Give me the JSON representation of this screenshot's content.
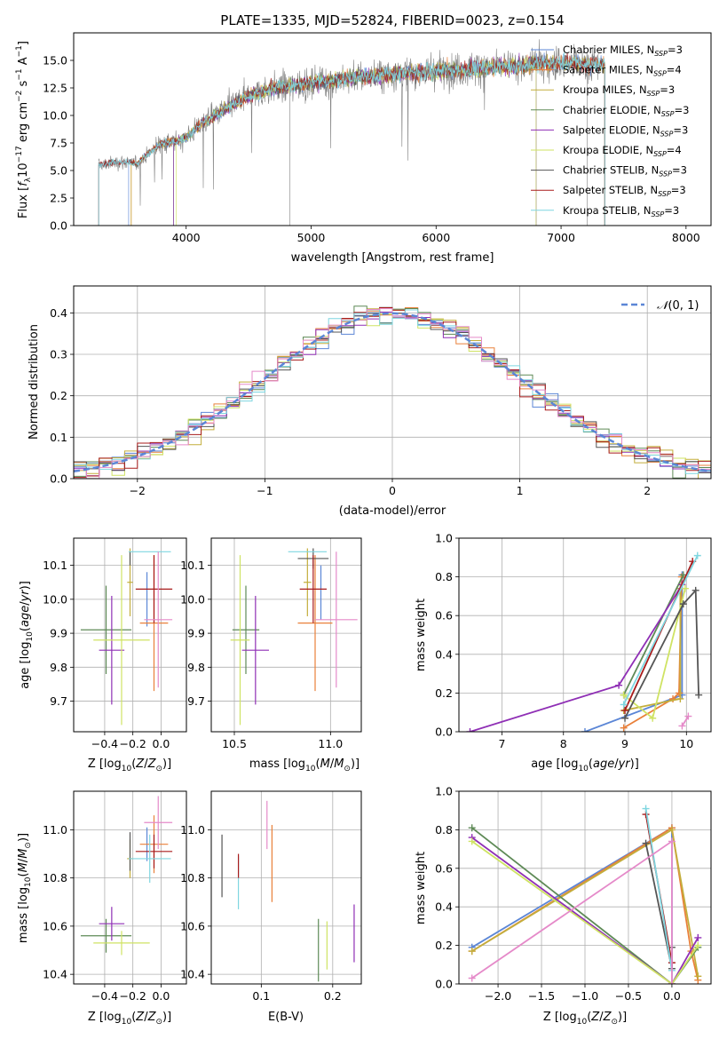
{
  "colors": {
    "Chabrier MILES": "#5b86d6",
    "Salpeter MILES": "#e9803a",
    "Kroupa MILES": "#c3ae3c",
    "Chabrier ELODIE": "#5e8a56",
    "Salpeter ELODIE": "#8f2fb5",
    "Kroupa ELODIE": "#cfe363",
    "Chabrier STELIB": "#555555",
    "Salpeter STELIB": "#a81b1b",
    "Kroupa STELIB": "#7fd6e0",
    "pink": "#e58ac9",
    "observed": "#808080",
    "normal": "#5b86d6"
  },
  "chart_data": [
    {
      "id": "spectrum",
      "type": "line",
      "title": "PLATE=1335, MJD=52824, FIBERID=0023, z=0.154",
      "xlabel": "wavelength [Angstrom, rest frame]",
      "ylabel": "Flux [f_λ 10^-17 erg cm^-2 s^-1 A^-1]",
      "xlim": [
        3100,
        8200
      ],
      "ylim": [
        0,
        17.5
      ],
      "xticks": [
        4000,
        5000,
        6000,
        7000,
        8000
      ],
      "yticks": [
        0.0,
        2.5,
        5.0,
        7.5,
        10.0,
        12.5,
        15.0
      ],
      "ytick_labels": [
        "0.0",
        "2.5",
        "5.0",
        "7.5",
        "10.0",
        "12.5",
        "15.0"
      ],
      "grid": false,
      "legend": "right",
      "continuum": {
        "x": [
          3300,
          3500,
          3600,
          3800,
          3900,
          4000,
          4100,
          4300,
          4500,
          4700,
          5000,
          5300,
          5600,
          6000,
          6300,
          6600,
          7000,
          7300
        ],
        "y": [
          5.5,
          5.8,
          5.6,
          7.5,
          7.6,
          8.0,
          9.0,
          10.5,
          11.8,
          12.5,
          12.9,
          13.4,
          13.7,
          14.0,
          14.3,
          14.5,
          14.8,
          14.6
        ]
      },
      "series": [
        {
          "name": "Chabrier MILES, N_SSP=3",
          "color_key": "Chabrier MILES"
        },
        {
          "name": "Salpeter MILES, N_SSP=4",
          "color_key": "Salpeter MILES"
        },
        {
          "name": "Kroupa MILES, N_SSP=3",
          "color_key": "Kroupa MILES"
        },
        {
          "name": "Chabrier ELODIE, N_SSP=3",
          "color_key": "Chabrier ELODIE"
        },
        {
          "name": "Salpeter ELODIE, N_SSP=3",
          "color_key": "Salpeter ELODIE"
        },
        {
          "name": "Kroupa ELODIE, N_SSP=4",
          "color_key": "Kroupa ELODIE"
        },
        {
          "name": "Chabrier STELIB, N_SSP=3",
          "color_key": "Chabrier STELIB"
        },
        {
          "name": "Salpeter STELIB, N_SSP=3",
          "color_key": "Salpeter STELIB"
        },
        {
          "name": "Kroupa STELIB, N_SSP=3",
          "color_key": "Kroupa STELIB"
        }
      ]
    },
    {
      "id": "residuals",
      "type": "histogram",
      "xlabel": "(data-model)/error",
      "ylabel": "Normed distribution",
      "xlim": [
        -2.5,
        2.5
      ],
      "ylim": [
        0,
        0.465
      ],
      "xticks": [
        -2,
        -1,
        0,
        1,
        2
      ],
      "yticks": [
        0.0,
        0.1,
        0.2,
        0.3,
        0.4
      ],
      "grid": true,
      "legend": "top-right",
      "normal_label": "N(0,1)"
    },
    {
      "id": "age-Z",
      "type": "errorbar",
      "xlabel": "Z [log10(Z/Z_sun)]",
      "ylabel": "age [log10(age/yr)]",
      "xlim": [
        -0.62,
        0.18
      ],
      "ylim": [
        9.61,
        10.18
      ],
      "xticks": [
        -0.4,
        -0.2,
        0.0
      ],
      "yticks": [
        9.7,
        9.8,
        9.9,
        10.0,
        10.1
      ],
      "points": [
        {
          "c": "Chabrier MILES",
          "x": -0.1,
          "y": 10.0,
          "xe": 0.0,
          "ye": 0.08
        },
        {
          "c": "Salpeter MILES",
          "x": -0.05,
          "y": 9.93,
          "xe": 0.1,
          "ye": 0.2
        },
        {
          "c": "Kroupa MILES",
          "x": -0.22,
          "y": 10.05,
          "xe": 0.02,
          "ye": 0.1
        },
        {
          "c": "Chabrier ELODIE",
          "x": -0.39,
          "y": 9.91,
          "xe": 0.18,
          "ye": 0.13
        },
        {
          "c": "Salpeter ELODIE",
          "x": -0.35,
          "y": 9.85,
          "xe": 0.09,
          "ye": 0.16
        },
        {
          "c": "Kroupa ELODIE",
          "x": -0.28,
          "y": 9.88,
          "xe": 0.2,
          "ye": 0.25
        },
        {
          "c": "Chabrier STELIB",
          "x": -0.22,
          "y": 10.12,
          "xe": 0.0,
          "ye": 0.02
        },
        {
          "c": "Salpeter STELIB",
          "x": -0.05,
          "y": 10.03,
          "xe": 0.13,
          "ye": 0.1
        },
        {
          "c": "Kroupa STELIB",
          "x": -0.08,
          "y": 10.14,
          "xe": 0.15,
          "ye": 0.0
        },
        {
          "c": "pink",
          "x": -0.02,
          "y": 9.94,
          "xe": 0.1,
          "ye": 0.2
        }
      ]
    },
    {
      "id": "age-mass",
      "type": "errorbar",
      "xlabel": "mass [log10(M/M_sun)]",
      "xlim": [
        10.38,
        11.16
      ],
      "ylim": [
        9.61,
        10.18
      ],
      "xticks": [
        10.5,
        11.0
      ],
      "yticks": [
        9.7,
        9.8,
        9.9,
        10.0,
        10.1
      ],
      "points": [
        {
          "c": "Chabrier MILES",
          "x": 10.95,
          "y": 10.02,
          "xe": 0.0,
          "ye": 0.08
        },
        {
          "c": "Salpeter MILES",
          "x": 10.92,
          "y": 9.93,
          "xe": 0.09,
          "ye": 0.2
        },
        {
          "c": "Kroupa MILES",
          "x": 10.88,
          "y": 10.05,
          "xe": 0.02,
          "ye": 0.1
        },
        {
          "c": "Chabrier ELODIE",
          "x": 10.56,
          "y": 9.91,
          "xe": 0.07,
          "ye": 0.13
        },
        {
          "c": "Salpeter ELODIE",
          "x": 10.61,
          "y": 9.85,
          "xe": 0.07,
          "ye": 0.16
        },
        {
          "c": "Kroupa ELODIE",
          "x": 10.53,
          "y": 9.88,
          "xe": 0.05,
          "ye": 0.25
        },
        {
          "c": "Chabrier STELIB",
          "x": 10.91,
          "y": 10.12,
          "xe": 0.08,
          "ye": 0.03
        },
        {
          "c": "Salpeter STELIB",
          "x": 10.91,
          "y": 10.03,
          "xe": 0.07,
          "ye": 0.1
        },
        {
          "c": "Kroupa STELIB",
          "x": 10.88,
          "y": 10.14,
          "xe": 0.1,
          "ye": 0.0
        },
        {
          "c": "pink",
          "x": 11.03,
          "y": 9.94,
          "xe": 0.11,
          "ye": 0.2
        }
      ]
    },
    {
      "id": "weight-age",
      "type": "line",
      "xlabel": "age [log10(age/yr)]",
      "ylabel": "mass weight",
      "xlim": [
        6.3,
        10.4
      ],
      "ylim": [
        0,
        1
      ],
      "xticks": [
        7,
        8,
        9,
        10
      ],
      "yticks": [
        0.0,
        0.2,
        0.4,
        0.6,
        0.8,
        1.0
      ],
      "grid": true,
      "series": [
        {
          "c": "Chabrier MILES",
          "x": [
            8.35,
            9.93,
            9.93
          ],
          "y": [
            0.0,
            0.19,
            0.81
          ]
        },
        {
          "c": "Salpeter MILES",
          "x": [
            8.98,
            9.78,
            9.88,
            9.92
          ],
          "y": [
            0.02,
            0.17,
            0.2,
            0.8
          ]
        },
        {
          "c": "Kroupa MILES",
          "x": [
            8.98,
            9.9,
            9.9
          ],
          "y": [
            0.11,
            0.17,
            0.74
          ]
        },
        {
          "c": "Chabrier ELODIE",
          "x": [
            8.98,
            9.95
          ],
          "y": [
            0.19,
            0.81
          ]
        },
        {
          "c": "Salpeter ELODIE",
          "x": [
            6.48,
            8.9,
            9.93
          ],
          "y": [
            0.0,
            0.24,
            0.76
          ]
        },
        {
          "c": "Kroupa ELODIE",
          "x": [
            8.98,
            9.45,
            9.98
          ],
          "y": [
            0.19,
            0.07,
            0.74
          ]
        },
        {
          "c": "Chabrier STELIB",
          "x": [
            9.0,
            9.95,
            10.15,
            10.2
          ],
          "y": [
            0.07,
            0.66,
            0.73,
            0.19
          ]
        },
        {
          "c": "Salpeter STELIB",
          "x": [
            9.0,
            10.1
          ],
          "y": [
            0.11,
            0.88
          ]
        },
        {
          "c": "Kroupa STELIB",
          "x": [
            8.98,
            10.18
          ],
          "y": [
            0.14,
            0.91
          ]
        },
        {
          "c": "pink",
          "x": [
            9.93,
            10.03
          ],
          "y": [
            0.03,
            0.08
          ]
        }
      ]
    },
    {
      "id": "mass-Z",
      "type": "errorbar",
      "xlabel": "Z [log10(Z/Z_sun)]",
      "ylabel": "mass [log10(M/M_sun)]",
      "xlim": [
        -0.62,
        0.18
      ],
      "ylim": [
        10.36,
        11.16
      ],
      "xticks": [
        -0.4,
        -0.2,
        0.0
      ],
      "yticks": [
        10.4,
        10.6,
        10.8,
        11.0
      ],
      "points": [
        {
          "c": "Chabrier MILES",
          "x": -0.1,
          "y": 10.94,
          "xe": 0.0,
          "ye": 0.07
        },
        {
          "c": "Salpeter MILES",
          "x": -0.05,
          "y": 10.94,
          "xe": 0.1,
          "ye": 0.12
        },
        {
          "c": "Kroupa MILES",
          "x": -0.22,
          "y": 10.88,
          "xe": 0.02,
          "ye": 0.08
        },
        {
          "c": "Chabrier ELODIE",
          "x": -0.39,
          "y": 10.56,
          "xe": 0.18,
          "ye": 0.07
        },
        {
          "c": "Salpeter ELODIE",
          "x": -0.35,
          "y": 10.61,
          "xe": 0.09,
          "ye": 0.07
        },
        {
          "c": "Kroupa ELODIE",
          "x": -0.28,
          "y": 10.53,
          "xe": 0.2,
          "ye": 0.05
        },
        {
          "c": "Chabrier STELIB",
          "x": -0.22,
          "y": 10.91,
          "xe": 0.0,
          "ye": 0.08
        },
        {
          "c": "Salpeter STELIB",
          "x": -0.05,
          "y": 10.91,
          "xe": 0.13,
          "ye": 0.07
        },
        {
          "c": "Kroupa STELIB",
          "x": -0.08,
          "y": 10.88,
          "xe": 0.15,
          "ye": 0.1
        },
        {
          "c": "pink",
          "x": -0.02,
          "y": 11.03,
          "xe": 0.1,
          "ye": 0.11
        }
      ]
    },
    {
      "id": "mass-EBV",
      "type": "errorbar",
      "xlabel": "E(B-V)",
      "xlim": [
        0.03,
        0.24
      ],
      "ylim": [
        10.36,
        11.16
      ],
      "xticks": [
        0.1,
        0.2
      ],
      "yticks": [
        10.4,
        10.6,
        10.8,
        11.0
      ],
      "points": [
        {
          "c": "Chabrier STELIB",
          "x": 0.045,
          "y": 10.85,
          "xe": 0.0,
          "ye": 0.13
        },
        {
          "c": "Kroupa STELIB",
          "x": 0.068,
          "y": 10.78,
          "xe": 0.0,
          "ye": 0.11
        },
        {
          "c": "Salpeter STELIB",
          "x": 0.068,
          "y": 10.85,
          "xe": 0.0,
          "ye": 0.05
        },
        {
          "c": "pink",
          "x": 0.108,
          "y": 11.02,
          "xe": 0.0,
          "ye": 0.1
        },
        {
          "c": "Salpeter MILES",
          "x": 0.115,
          "y": 10.86,
          "xe": 0.0,
          "ye": 0.16
        },
        {
          "c": "Chabrier ELODIE",
          "x": 0.18,
          "y": 10.5,
          "xe": 0.0,
          "ye": 0.13
        },
        {
          "c": "Kroupa ELODIE",
          "x": 0.192,
          "y": 10.52,
          "xe": 0.0,
          "ye": 0.1
        },
        {
          "c": "Salpeter ELODIE",
          "x": 0.23,
          "y": 10.57,
          "xe": 0.0,
          "ye": 0.12
        }
      ]
    },
    {
      "id": "weight-Z",
      "type": "line",
      "xlabel": "Z [log10(Z/Z_sun)]",
      "ylabel": "mass weight",
      "xlim": [
        -2.45,
        0.45
      ],
      "ylim": [
        0,
        1
      ],
      "xticks": [
        -2.0,
        -1.5,
        -1.0,
        -0.5,
        0.0
      ],
      "yticks": [
        0.0,
        0.2,
        0.4,
        0.6,
        0.8,
        1.0
      ],
      "grid": true,
      "series": [
        {
          "c": "Chabrier MILES",
          "x": [
            -2.3,
            0.0,
            0.0
          ],
          "y": [
            0.19,
            0.81,
            0.0
          ]
        },
        {
          "c": "Salpeter MILES",
          "x": [
            -2.3,
            0.0,
            0.22,
            0.3
          ],
          "y": [
            0.17,
            0.81,
            0.17,
            0.02
          ]
        },
        {
          "c": "Kroupa MILES",
          "x": [
            -2.3,
            0.0,
            0.3
          ],
          "y": [
            0.17,
            0.8,
            0.04
          ]
        },
        {
          "c": "Chabrier ELODIE",
          "x": [
            -2.3,
            0.0,
            0.3
          ],
          "y": [
            0.81,
            0.0,
            0.19
          ]
        },
        {
          "c": "Salpeter ELODIE",
          "x": [
            -2.3,
            0.0,
            0.3
          ],
          "y": [
            0.76,
            0.0,
            0.24
          ]
        },
        {
          "c": "Kroupa ELODIE",
          "x": [
            -2.3,
            0.0,
            0.3
          ],
          "y": [
            0.74,
            0.0,
            0.2
          ]
        },
        {
          "c": "Chabrier STELIB",
          "x": [
            -0.3,
            0.0,
            0.0
          ],
          "y": [
            0.73,
            0.08,
            0.19
          ]
        },
        {
          "c": "Salpeter STELIB",
          "x": [
            -0.3,
            0.0
          ],
          "y": [
            0.88,
            0.11
          ]
        },
        {
          "c": "Kroupa STELIB",
          "x": [
            -0.3,
            0.0
          ],
          "y": [
            0.91,
            0.07
          ]
        },
        {
          "c": "pink",
          "x": [
            -2.3,
            0.0,
            0.0
          ],
          "y": [
            0.03,
            0.74,
            0.0
          ]
        }
      ]
    }
  ]
}
